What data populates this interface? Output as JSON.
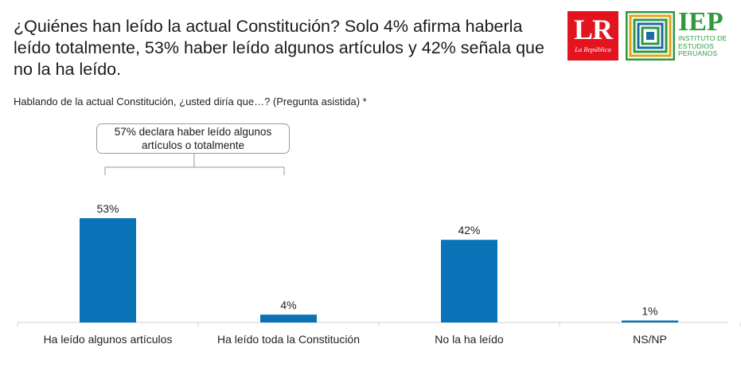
{
  "headline": "¿Quiénes han leído la actual Constitución? Solo 4% afirma haberla leído totalmente, 53% haber leído algunos artículos y 42% señala que no la ha leído.",
  "question": "Hablando de la actual Constitución, ¿usted diría que…? (Pregunta asistida) *",
  "logos": {
    "lr_text": "LR",
    "lr_subtext": "La República",
    "iep_text": "IEP",
    "iep_subtext": "INSTITUTO DE ESTUDIOS PERUANOS",
    "lr_color": "#e3141f",
    "iep_color": "#2f9a3d"
  },
  "annotation": "57% declara haber leído algunos artículos o totalmente",
  "chart_data": {
    "type": "bar",
    "categories": [
      "Ha leído algunos artículos",
      "Ha leído toda la Constitución",
      "No la ha leído",
      "NS/NP"
    ],
    "values": [
      53,
      4,
      42,
      1
    ],
    "value_labels": [
      "53%",
      "4%",
      "42%",
      "1%"
    ],
    "ylim": [
      0,
      53
    ],
    "bar_color": "#0a73b8",
    "grid": false
  }
}
